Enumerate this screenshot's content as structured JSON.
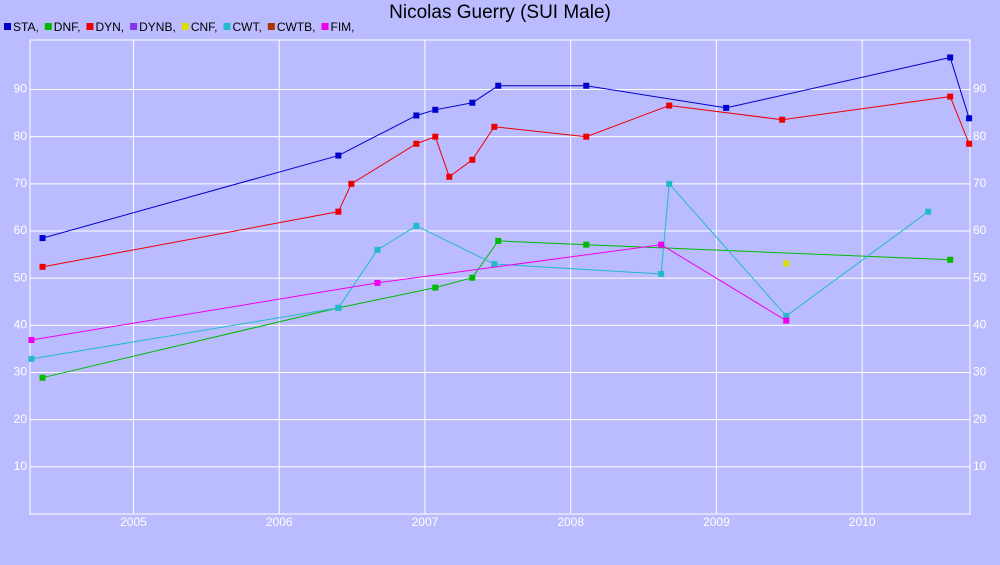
{
  "chart_data": {
    "type": "line",
    "title": "Nicolas Guerry (SUI Male)",
    "xlim": [
      2004.29,
      2010.74
    ],
    "xticks": [
      2005,
      2006,
      2007,
      2008,
      2009,
      2010
    ],
    "ylim": [
      0,
      100.5
    ],
    "yticks": [
      10,
      20,
      30,
      40,
      50,
      60,
      70,
      80,
      90
    ],
    "grid": true,
    "series": [
      {
        "name": "STA,",
        "color": "#0000cc",
        "x": [
          2004.376,
          2006.406,
          2006.941,
          2007.071,
          2007.325,
          2007.503,
          2008.107,
          2009.067,
          2010.604,
          2010.734
        ],
        "values": [
          58.5,
          76,
          84.5,
          85.7,
          87.2,
          90.8,
          90.8,
          86.1,
          96.8,
          83.9
        ]
      },
      {
        "name": "DNF,",
        "color": "#00bb00",
        "x": [
          2004.376,
          2006.406,
          2007.071,
          2007.325,
          2007.503,
          2008.107,
          2010.604
        ],
        "values": [
          28.9,
          43.7,
          48,
          50.1,
          57.9,
          57.1,
          53.9
        ]
      },
      {
        "name": "DYN,",
        "color": "#ee0000",
        "x": [
          2004.376,
          2006.406,
          2006.495,
          2006.941,
          2007.071,
          2007.167,
          2007.325,
          2007.476,
          2008.107,
          2008.676,
          2009.451,
          2010.604,
          2010.734
        ],
        "values": [
          52.4,
          64.1,
          70,
          78.5,
          80,
          71.5,
          75.1,
          82.1,
          80,
          86.6,
          83.6,
          88.5,
          78.5
        ]
      },
      {
        "name": "DYNB,",
        "color": "#8833ee",
        "x": [],
        "values": []
      },
      {
        "name": "CNF,",
        "color": "#dddd00",
        "x": [
          2009.479
        ],
        "values": [
          53.1
        ]
      },
      {
        "name": "CWT,",
        "color": "#22bbcc",
        "x": [
          2004.3,
          2006.406,
          2006.674,
          2006.941,
          2007.476,
          2008.621,
          2008.676,
          2009.479,
          2010.453
        ],
        "values": [
          32.9,
          43.7,
          56,
          61.1,
          53,
          50.9,
          70,
          42,
          64.1
        ]
      },
      {
        "name": "CWTB,",
        "color": "#aa3300",
        "x": [],
        "values": []
      },
      {
        "name": "FIM,",
        "color": "#ee00ee",
        "x": [
          2004.3,
          2006.674,
          2008.621,
          2009.479
        ],
        "values": [
          36.9,
          49,
          57.1,
          41
        ]
      }
    ]
  }
}
